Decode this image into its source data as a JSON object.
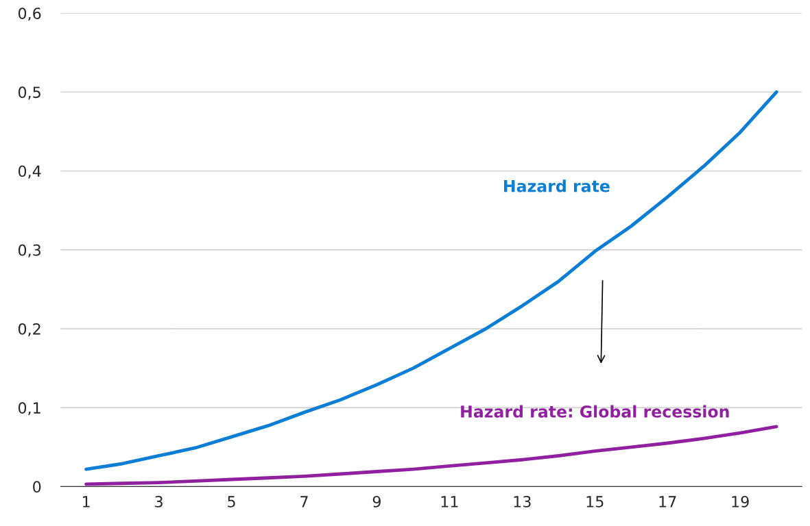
{
  "chart_data": {
    "type": "line",
    "x": [
      1,
      2,
      3,
      4,
      5,
      6,
      7,
      8,
      9,
      10,
      11,
      12,
      13,
      14,
      15,
      16,
      17,
      18,
      19,
      20
    ],
    "series": [
      {
        "name": "Hazard rate",
        "color": "#0a7ed4",
        "values": [
          0.022,
          0.029,
          0.039,
          0.049,
          0.063,
          0.077,
          0.094,
          0.11,
          0.129,
          0.15,
          0.175,
          0.2,
          0.229,
          0.26,
          0.298,
          0.33,
          0.367,
          0.406,
          0.449,
          0.5
        ]
      },
      {
        "name": "Hazard rate: Global recession",
        "color": "#9120a0",
        "values": [
          0.003,
          0.004,
          0.005,
          0.007,
          0.009,
          0.011,
          0.013,
          0.016,
          0.019,
          0.022,
          0.026,
          0.03,
          0.034,
          0.039,
          0.045,
          0.05,
          0.055,
          0.061,
          0.068,
          0.076
        ]
      }
    ],
    "xlim": [
      0.3,
      20.7
    ],
    "xticks": [
      1,
      3,
      5,
      7,
      9,
      11,
      13,
      15,
      17,
      19
    ],
    "ylim": [
      0,
      0.6
    ],
    "yticks": [
      {
        "value": 0,
        "label": "0"
      },
      {
        "value": 0.1,
        "label": "0,1"
      },
      {
        "value": 0.2,
        "label": "0,2"
      },
      {
        "value": 0.3,
        "label": "0,3"
      },
      {
        "value": 0.4,
        "label": "0,4"
      },
      {
        "value": 0.5,
        "label": "0,5"
      },
      {
        "value": 0.6,
        "label": "0,6"
      }
    ],
    "grid": "y",
    "legend": false,
    "marker": "none",
    "line_style": "solid"
  }
}
